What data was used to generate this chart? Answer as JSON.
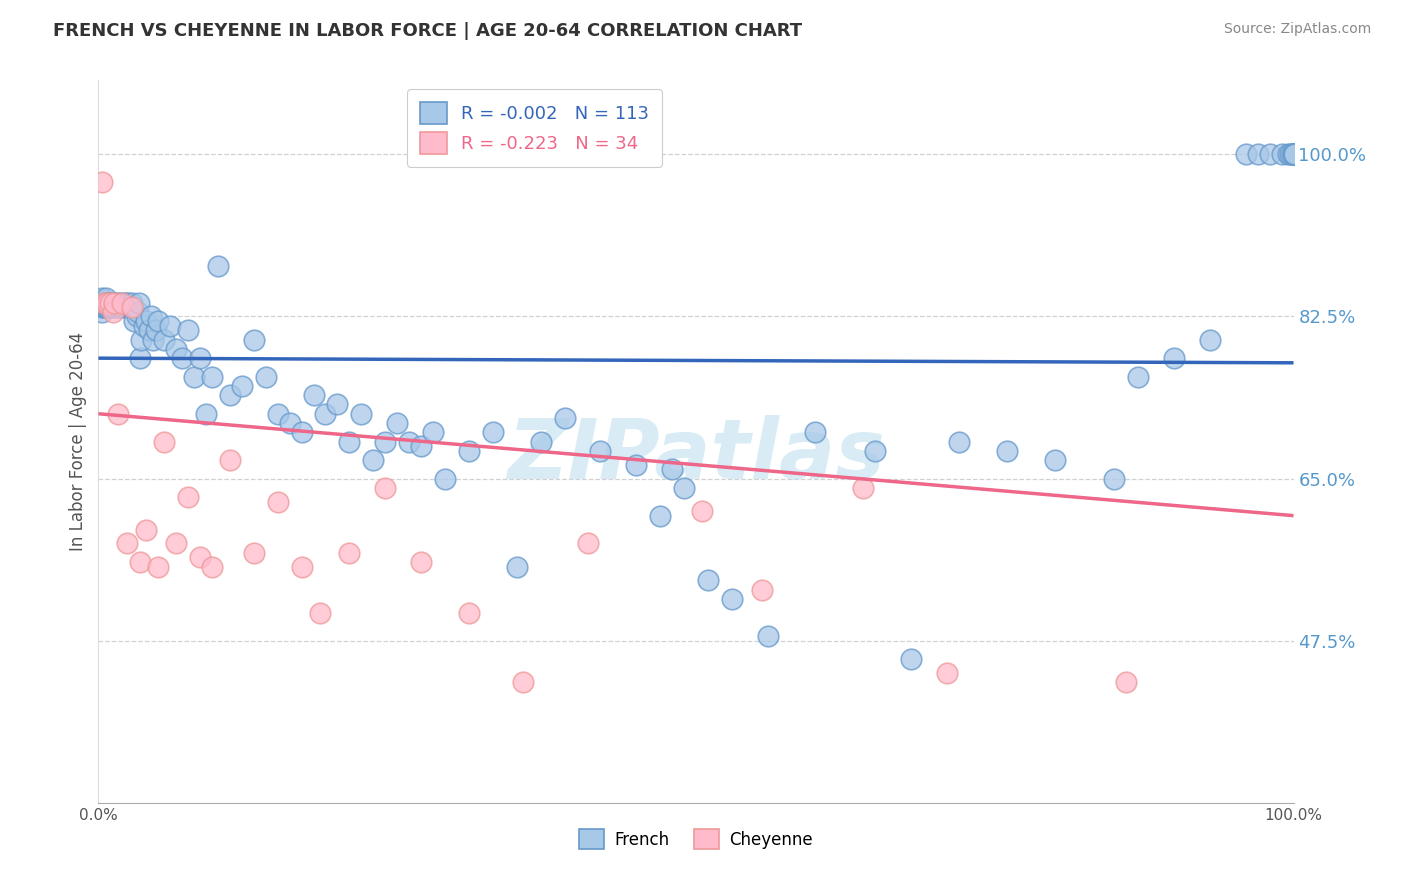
{
  "title": "FRENCH VS CHEYENNE IN LABOR FORCE | AGE 20-64 CORRELATION CHART",
  "source_text": "Source: ZipAtlas.com",
  "ylabel": "In Labor Force | Age 20-64",
  "xlim": [
    0.0,
    1.0
  ],
  "ylim": [
    0.3,
    1.08
  ],
  "yticks": [
    0.475,
    0.65,
    0.825,
    1.0
  ],
  "ytick_labels": [
    "47.5%",
    "65.0%",
    "82.5%",
    "100.0%"
  ],
  "xticks": [
    0.0,
    0.25,
    0.5,
    0.75,
    1.0
  ],
  "xtick_labels": [
    "0.0%",
    "",
    "",
    "",
    "100.0%"
  ],
  "legend_bottom_labels": [
    "French",
    "Cheyenne"
  ],
  "french_R": "-0.002",
  "french_N": "113",
  "cheyenne_R": "-0.223",
  "cheyenne_N": "34",
  "blue_scatter_face": "#A8C8E8",
  "blue_scatter_edge": "#6699CC",
  "pink_scatter_face": "#FFBBCC",
  "pink_scatter_edge": "#EE9999",
  "blue_line_color": "#3366BB",
  "pink_line_color": "#EE6688",
  "title_color": "#333333",
  "ylabel_color": "#555555",
  "right_tick_color": "#5599CC",
  "watermark_color": "#BBDDEE",
  "background_color": "#FFFFFF",
  "grid_color": "#CCCCCC",
  "legend_r_blue": "#3366BB",
  "legend_r_pink": "#EE6688",
  "legend_n_color": "#333333",
  "french_x": [
    0.001,
    0.002,
    0.003,
    0.003,
    0.004,
    0.004,
    0.005,
    0.005,
    0.006,
    0.006,
    0.007,
    0.007,
    0.008,
    0.008,
    0.009,
    0.01,
    0.01,
    0.011,
    0.012,
    0.013,
    0.014,
    0.015,
    0.016,
    0.017,
    0.018,
    0.019,
    0.02,
    0.021,
    0.022,
    0.023,
    0.024,
    0.025,
    0.026,
    0.027,
    0.028,
    0.03,
    0.032,
    0.033,
    0.034,
    0.035,
    0.036,
    0.038,
    0.04,
    0.042,
    0.044,
    0.046,
    0.048,
    0.05,
    0.055,
    0.06,
    0.065,
    0.07,
    0.075,
    0.08,
    0.085,
    0.09,
    0.095,
    0.1,
    0.11,
    0.12,
    0.13,
    0.14,
    0.15,
    0.16,
    0.17,
    0.18,
    0.19,
    0.2,
    0.21,
    0.22,
    0.23,
    0.24,
    0.25,
    0.26,
    0.27,
    0.28,
    0.29,
    0.31,
    0.33,
    0.35,
    0.37,
    0.39,
    0.42,
    0.45,
    0.47,
    0.48,
    0.49,
    0.51,
    0.53,
    0.56,
    0.6,
    0.65,
    0.68,
    0.72,
    0.76,
    0.8,
    0.85,
    0.87,
    0.9,
    0.93,
    0.96,
    0.97,
    0.98,
    0.99,
    0.995,
    0.997,
    0.999,
    1.0,
    1.0,
    1.0,
    1.0,
    1.0,
    1.0
  ],
  "french_y": [
    0.84,
    0.835,
    0.83,
    0.845,
    0.835,
    0.84,
    0.835,
    0.84,
    0.835,
    0.845,
    0.84,
    0.835,
    0.84,
    0.835,
    0.84,
    0.835,
    0.84,
    0.835,
    0.84,
    0.835,
    0.84,
    0.835,
    0.84,
    0.835,
    0.835,
    0.84,
    0.835,
    0.84,
    0.835,
    0.84,
    0.835,
    0.84,
    0.835,
    0.835,
    0.84,
    0.82,
    0.825,
    0.83,
    0.84,
    0.78,
    0.8,
    0.815,
    0.82,
    0.81,
    0.825,
    0.8,
    0.81,
    0.82,
    0.8,
    0.815,
    0.79,
    0.78,
    0.81,
    0.76,
    0.78,
    0.72,
    0.76,
    0.88,
    0.74,
    0.75,
    0.8,
    0.76,
    0.72,
    0.71,
    0.7,
    0.74,
    0.72,
    0.73,
    0.69,
    0.72,
    0.67,
    0.69,
    0.71,
    0.69,
    0.685,
    0.7,
    0.65,
    0.68,
    0.7,
    0.555,
    0.69,
    0.715,
    0.68,
    0.665,
    0.61,
    0.66,
    0.64,
    0.54,
    0.52,
    0.48,
    0.7,
    0.68,
    0.455,
    0.69,
    0.68,
    0.67,
    0.65,
    0.76,
    0.78,
    0.8,
    1.0,
    1.0,
    1.0,
    1.0,
    1.0,
    1.0,
    1.0,
    1.0,
    1.0,
    1.0,
    1.0,
    1.0,
    1.0
  ],
  "cheyenne_x": [
    0.003,
    0.005,
    0.007,
    0.01,
    0.012,
    0.013,
    0.016,
    0.02,
    0.024,
    0.028,
    0.035,
    0.04,
    0.05,
    0.055,
    0.065,
    0.075,
    0.085,
    0.095,
    0.11,
    0.13,
    0.15,
    0.17,
    0.185,
    0.21,
    0.24,
    0.27,
    0.31,
    0.355,
    0.41,
    0.505,
    0.555,
    0.64,
    0.71,
    0.86
  ],
  "cheyenne_y": [
    0.97,
    0.84,
    0.84,
    0.84,
    0.83,
    0.84,
    0.72,
    0.84,
    0.58,
    0.835,
    0.56,
    0.595,
    0.555,
    0.69,
    0.58,
    0.63,
    0.565,
    0.555,
    0.67,
    0.57,
    0.625,
    0.555,
    0.505,
    0.57,
    0.64,
    0.56,
    0.505,
    0.43,
    0.58,
    0.615,
    0.53,
    0.64,
    0.44,
    0.43
  ],
  "blue_line_y0": 0.78,
  "blue_line_y1": 0.775,
  "pink_line_y0": 0.72,
  "pink_line_y1": 0.61
}
